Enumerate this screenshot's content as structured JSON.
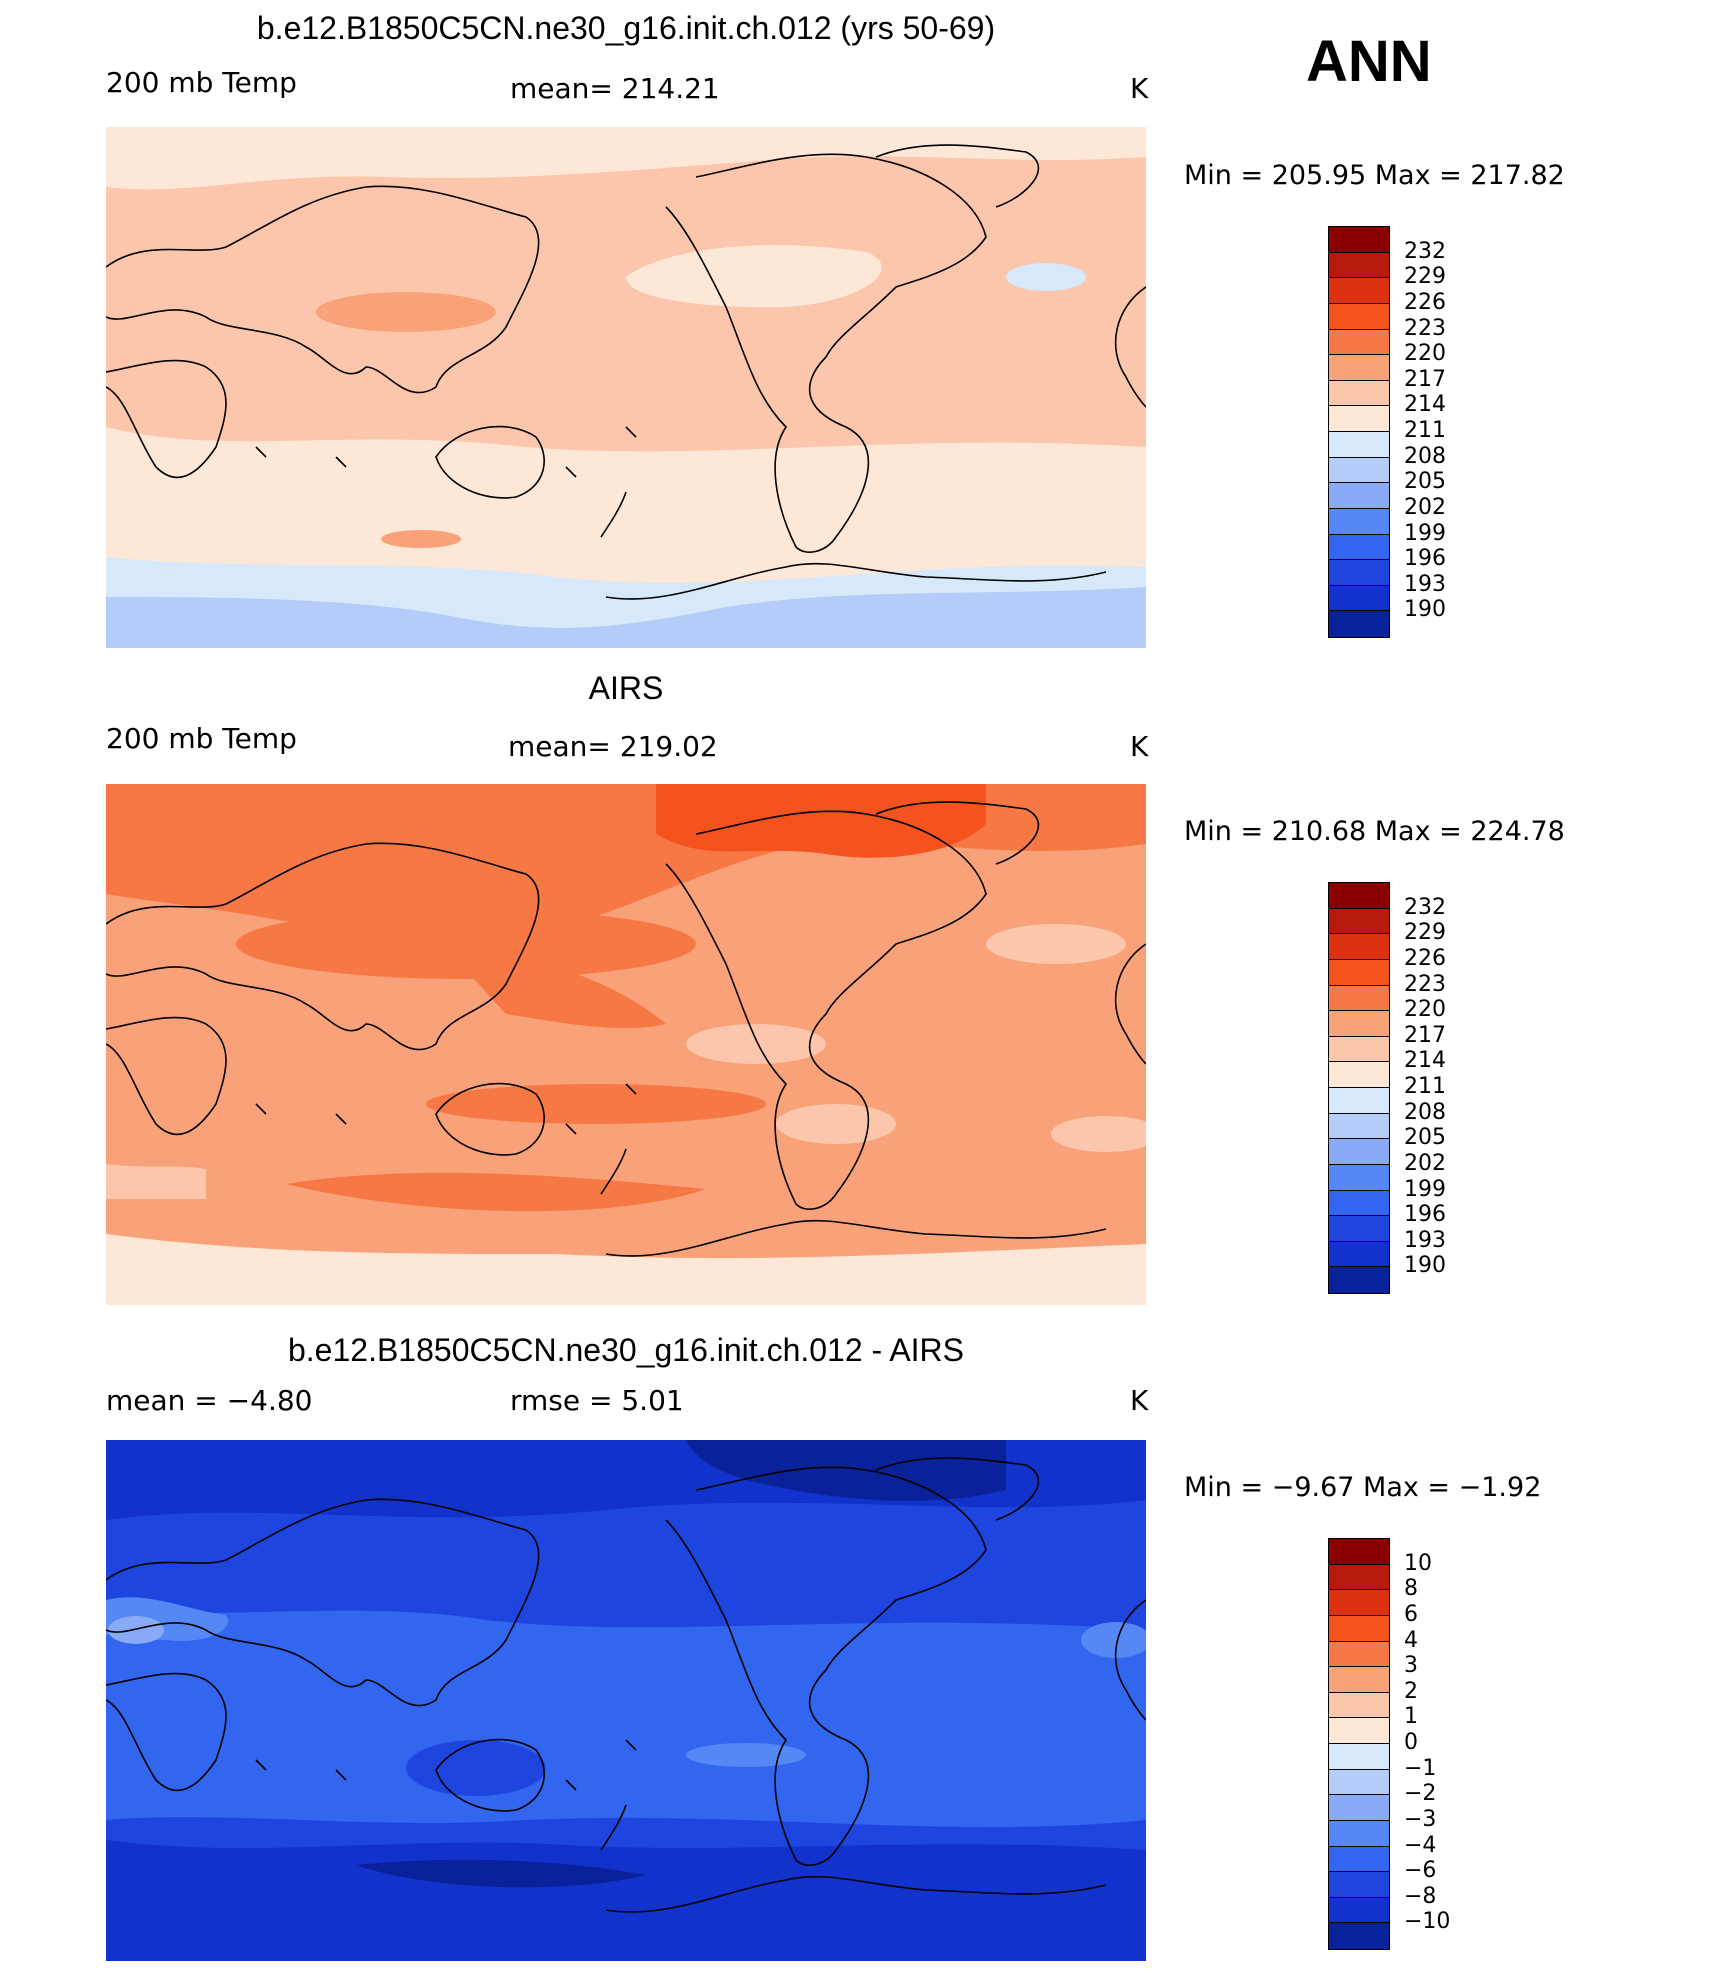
{
  "season": "ANN",
  "colors": {
    "temp_scale": [
      "#000077",
      "#0a2299",
      "#1133cc",
      "#1e46de",
      "#3366ee",
      "#5588f4",
      "#88aaf7",
      "#b5ccf9",
      "#d8e8fb",
      "#fde8d8",
      "#fbc6ab",
      "#f9a27a",
      "#f67945",
      "#f4521e",
      "#db3212",
      "#b71b0c",
      "#8a0000"
    ],
    "diff_scale": [
      "#000077",
      "#0a2299",
      "#1133cc",
      "#1e46de",
      "#3366ee",
      "#5588f4",
      "#88aaf7",
      "#b5ccf9",
      "#d8e8fb",
      "#fde8d8",
      "#fbc6ab",
      "#f9a27a",
      "#f67945",
      "#f4521e",
      "#db3212",
      "#b71b0c",
      "#8a0000"
    ]
  },
  "panels": [
    {
      "title": "b.e12.B1850C5CN.ne30_g16.init.ch.012 (yrs 50-69)",
      "left_label": "200 mb Temp",
      "center_label": "mean=  214.21",
      "units": "K",
      "minmax": "Min  =  205.95  Max  =  217.82",
      "colorbar_labels": [
        "232",
        "229",
        "226",
        "223",
        "220",
        "217",
        "214",
        "211",
        "208",
        "205",
        "202",
        "199",
        "196",
        "193",
        "190"
      ]
    },
    {
      "title": "AIRS",
      "left_label": "200 mb Temp",
      "center_label": "mean=  219.02",
      "units": "K",
      "minmax": "Min  =  210.68  Max  =  224.78",
      "colorbar_labels": [
        "232",
        "229",
        "226",
        "223",
        "220",
        "217",
        "214",
        "211",
        "208",
        "205",
        "202",
        "199",
        "196",
        "193",
        "190"
      ]
    },
    {
      "title": "b.e12.B1850C5CN.ne30_g16.init.ch.012 - AIRS",
      "left_label": "mean  =     −4.80",
      "center_label": "rmse  =      5.01",
      "units": "K",
      "minmax": "Min  =    −9.67  Max  =    −1.92",
      "colorbar_labels": [
        "10",
        "8",
        "6",
        "4",
        "3",
        "2",
        "1",
        "0",
        "−1",
        "−2",
        "−3",
        "−4",
        "−6",
        "−8",
        "−10"
      ]
    }
  ]
}
